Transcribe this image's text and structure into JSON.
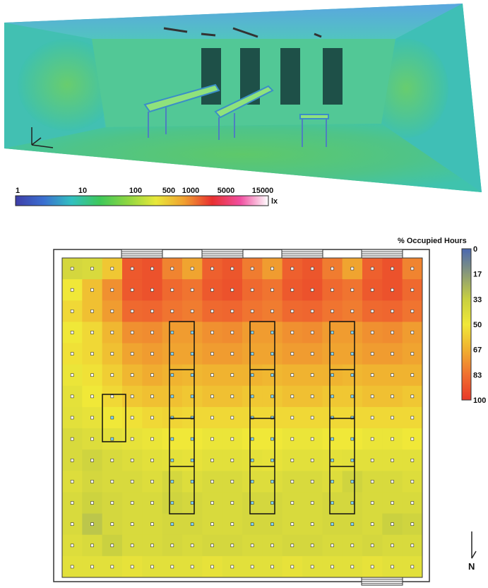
{
  "lux_scale": {
    "unit": "lx",
    "ticks": [
      "1",
      "10",
      "100",
      "500",
      "1000",
      "5000",
      "15000"
    ],
    "colors": [
      "#3e3ea8",
      "#3b6fd0",
      "#32c0c0",
      "#3ec85a",
      "#8ed641",
      "#e8e83a",
      "#f0a030",
      "#e83030",
      "#f04fa0",
      "#ffffff"
    ]
  },
  "occupancy_legend": {
    "title": "% Occupied Hours",
    "ticks": [
      "0",
      "17",
      "33",
      "50",
      "67",
      "83",
      "100"
    ],
    "colors": [
      "#4a68b0",
      "#8a9a78",
      "#c8d040",
      "#f0e838",
      "#f0b030",
      "#f07030",
      "#e83828"
    ]
  },
  "compass": {
    "label": "N"
  },
  "floorplan": {
    "rows": 15,
    "cols": 18,
    "colors": {
      "wall": "#ffffff",
      "outline": "#333333",
      "window_fill": "#f2f2f2",
      "sensor": "#ffffff",
      "sensor_highlight": "#7fd6ff"
    }
  },
  "chart_data": {
    "type": "heatmap",
    "title": "% Occupied Hours",
    "zlim": [
      0,
      100
    ],
    "values": [
      [
        38,
        40,
        60,
        90,
        92,
        78,
        70,
        88,
        91,
        80,
        72,
        88,
        91,
        80,
        70,
        88,
        92,
        78
      ],
      [
        50,
        62,
        75,
        90,
        92,
        85,
        82,
        90,
        92,
        85,
        82,
        90,
        92,
        85,
        82,
        90,
        92,
        85
      ],
      [
        55,
        62,
        72,
        85,
        86,
        82,
        80,
        85,
        86,
        82,
        80,
        85,
        86,
        82,
        80,
        85,
        86,
        82
      ],
      [
        50,
        55,
        65,
        75,
        76,
        72,
        72,
        75,
        76,
        72,
        72,
        75,
        76,
        72,
        72,
        75,
        76,
        72
      ],
      [
        52,
        55,
        62,
        70,
        72,
        70,
        70,
        72,
        72,
        70,
        70,
        72,
        72,
        70,
        70,
        72,
        72,
        70
      ],
      [
        48,
        52,
        58,
        65,
        68,
        66,
        65,
        66,
        66,
        66,
        65,
        66,
        66,
        66,
        65,
        66,
        66,
        66
      ],
      [
        45,
        50,
        55,
        60,
        62,
        62,
        60,
        62,
        62,
        60,
        60,
        62,
        62,
        60,
        60,
        62,
        62,
        60
      ],
      [
        44,
        46,
        50,
        52,
        55,
        56,
        55,
        55,
        55,
        55,
        55,
        55,
        55,
        55,
        55,
        55,
        55,
        55
      ],
      [
        40,
        42,
        44,
        46,
        48,
        50,
        50,
        48,
        48,
        50,
        50,
        48,
        48,
        50,
        50,
        48,
        48,
        50
      ],
      [
        40,
        36,
        40,
        42,
        44,
        45,
        46,
        44,
        44,
        45,
        46,
        44,
        44,
        45,
        44,
        44,
        44,
        44
      ],
      [
        42,
        38,
        40,
        40,
        42,
        38,
        42,
        40,
        40,
        42,
        42,
        40,
        40,
        42,
        36,
        40,
        40,
        42
      ],
      [
        40,
        35,
        38,
        40,
        40,
        36,
        38,
        40,
        40,
        38,
        38,
        40,
        40,
        38,
        38,
        40,
        40,
        40
      ],
      [
        40,
        30,
        38,
        40,
        40,
        38,
        38,
        40,
        40,
        38,
        38,
        40,
        40,
        38,
        38,
        40,
        34,
        36
      ],
      [
        42,
        40,
        34,
        40,
        40,
        38,
        40,
        38,
        38,
        40,
        40,
        38,
        38,
        40,
        40,
        38,
        40,
        40
      ],
      [
        44,
        44,
        44,
        46,
        44,
        44,
        44,
        46,
        44,
        44,
        44,
        46,
        44,
        44,
        44,
        46,
        44,
        44
      ]
    ]
  }
}
